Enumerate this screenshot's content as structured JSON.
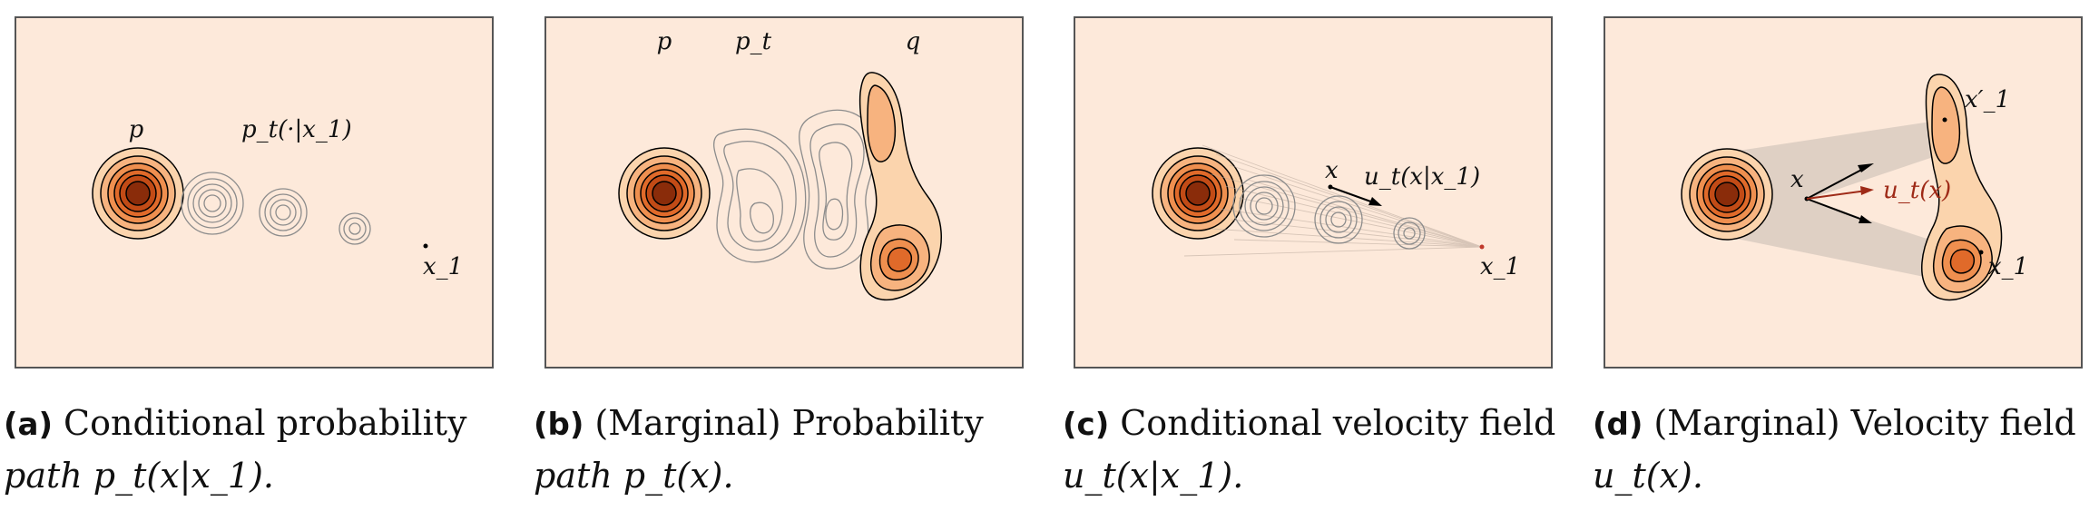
{
  "colors": {
    "background": "#fde9da",
    "frame": "#555555",
    "gaussian_levels": [
      "#fbd4ad",
      "#f7b37f",
      "#ef8f4f",
      "#e06a2a",
      "#c24b16",
      "#8a2c0a"
    ],
    "contour_gray": "#8c8c8c",
    "velocity_red": "#9e2a17"
  },
  "panels": [
    {
      "tag": "(a)",
      "title": "Conditional probability",
      "math": "path p_t(x|x_1).",
      "labels": {
        "p": "p",
        "pt": "p_t(·|x_1)",
        "x1": "x_1"
      }
    },
    {
      "tag": "(b)",
      "title": "(Marginal) Probability",
      "math": "path p_t(x).",
      "labels": {
        "p": "p",
        "pt": "p_t",
        "q": "q"
      }
    },
    {
      "tag": "(c)",
      "title": "Conditional velocity field",
      "math": "u_t(x|x_1).",
      "labels": {
        "x": "x",
        "ut": "u_t(x|x_1)",
        "x1": "x_1"
      }
    },
    {
      "tag": "(d)",
      "title": "(Marginal) Velocity field",
      "math": "u_t(x).",
      "labels": {
        "x": "x",
        "ut": "u_t(x)",
        "x1p": "x′_1",
        "x1": "x_1"
      }
    }
  ]
}
